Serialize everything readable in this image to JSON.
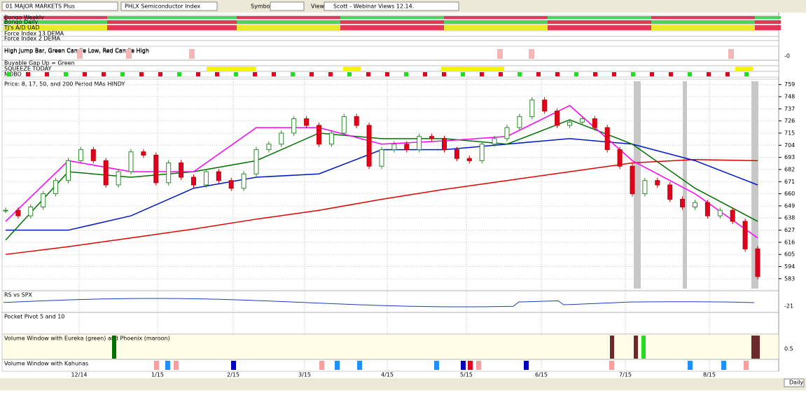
{
  "toolbar": {
    "watchlist": "01 MAJOR MARKETS Plus",
    "symbol_name": "PHLX Semiconductor Index",
    "symbol_label": "Symbol:",
    "view_label": "View:",
    "view": "Scott - Webinar Views 12.14."
  },
  "strips": [
    "Bongo Weekly",
    "Bongo Daily",
    "TJ's A/D UAD",
    "Force Index 13 DEMA",
    "Force Index 2 DEMA",
    "High Jump Bar, Green Candle Low, Red Candle High",
    "Buyable Gap Up = Green",
    "SQUEEZE TODAY",
    "MOBO"
  ],
  "high_jump_tick": {
    "value": 0,
    "label": "-0"
  },
  "chart_data": {
    "type": "candlestick",
    "title": "Price: 8, 17, 50, and 200 Period MAs HINDY",
    "closes": [
      645,
      640,
      648,
      660,
      672,
      690,
      700,
      690,
      668,
      680,
      698,
      695,
      670,
      688,
      675,
      668,
      680,
      672,
      665,
      678,
      700,
      705,
      715,
      728,
      722,
      705,
      715,
      730,
      722,
      685,
      700,
      705,
      700,
      712,
      710,
      700,
      692,
      690,
      705,
      710,
      720,
      730,
      745,
      735,
      722,
      725,
      728,
      720,
      700,
      685,
      660,
      672,
      668,
      655,
      648,
      652,
      640,
      645,
      635,
      610,
      585
    ],
    "ylim": [
      574,
      762
    ],
    "yticks": [
      759,
      748,
      737,
      726,
      715,
      704,
      693,
      682,
      671,
      660,
      649,
      638,
      627,
      616,
      605,
      594,
      583
    ],
    "ma": [
      {
        "color": "#e00000",
        "values": [
          605,
          612,
          620,
          628,
          637,
          645,
          655,
          664,
          672,
          680,
          688,
          691,
          690
        ]
      },
      {
        "color": "#0018c8",
        "values": [
          627,
          627,
          640,
          665,
          675,
          678,
          700,
          700,
          705,
          710,
          705,
          690,
          668
        ]
      },
      {
        "color": "#007000",
        "values": [
          618,
          680,
          675,
          680,
          690,
          715,
          710,
          710,
          705,
          727,
          705,
          665,
          635
        ]
      },
      {
        "color": "#ff00ff",
        "values": [
          635,
          690,
          680,
          680,
          720,
          720,
          705,
          708,
          712,
          740,
          690,
          660,
          620
        ]
      }
    ],
    "x_labels": [
      "12/14",
      "1/15",
      "2/15",
      "3/15",
      "4/15",
      "5/15",
      "6/15",
      "7/15",
      "8/15"
    ]
  },
  "rs": {
    "title": "RS vs SPX",
    "tick": -21
  },
  "pocket_pivot": {
    "title": "Pocket Pivot 5 and 10"
  },
  "volume": {
    "title": "Volume Window with Eureka (green) and Phoenix (maroon)",
    "tick": 0.5
  },
  "kahunas": {
    "title": "Volume Window with Kahunas"
  },
  "periodicity": "Daily"
}
